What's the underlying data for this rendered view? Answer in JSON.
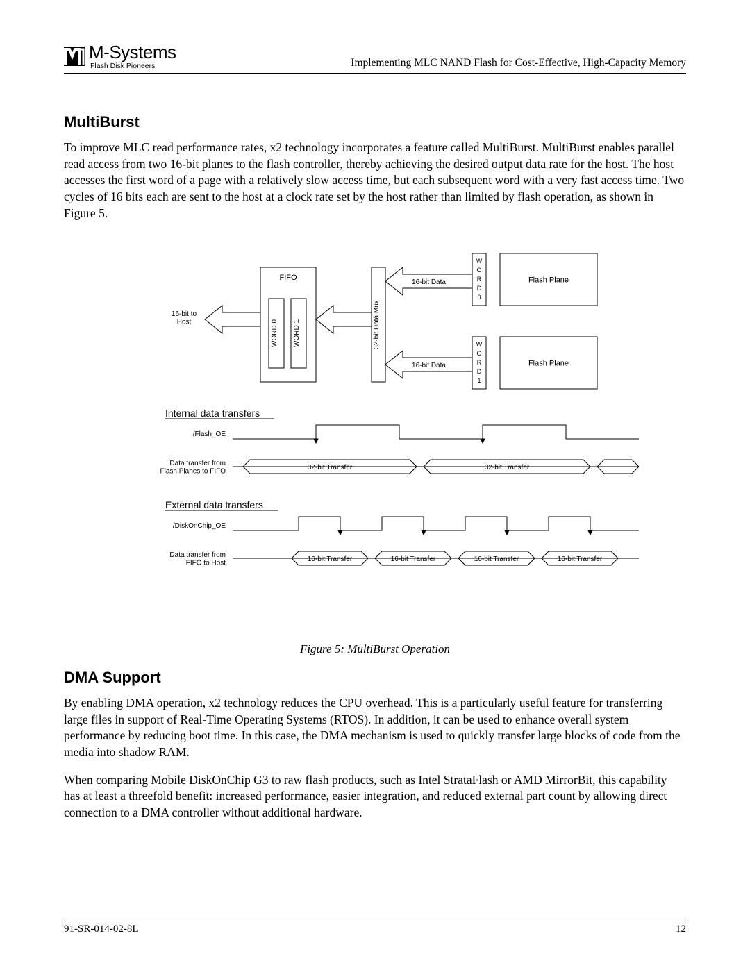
{
  "header": {
    "company": "M-Systems",
    "tagline": "Flash Disk Pioneers",
    "doc_title": "Implementing MLC NAND Flash for Cost-Effective, High-Capacity Memory"
  },
  "section1": {
    "heading": "MultiBurst",
    "para1": "To improve MLC read performance rates, x2 technology incorporates a feature called MultiBurst. MultiBurst enables parallel read access from two 16-bit planes to the flash controller, thereby achieving the desired output data rate for the host. The host accesses the first word of a page with a relatively slow access time, but each subsequent word with a very fast access time. Two cycles of 16 bits each are sent to the host at a clock rate set by the host rather than limited by flash operation, as shown in Figure 5."
  },
  "figure": {
    "caption": "Figure 5: MultiBurst Operation",
    "labels": {
      "fifo": "FIFO",
      "word0": "WORD 0",
      "word1": "WORD 1",
      "to_host": "16-bit to\nHost",
      "mux": "32-bit Data Mux",
      "data16": "16-bit Data",
      "w": "W",
      "o": "O",
      "r": "R",
      "d": "D",
      "zero": "0",
      "one": "1",
      "flash_plane": "Flash Plane",
      "internal": "Internal data transfers",
      "external": "External data transfers",
      "flash_oe": "/Flash_OE",
      "int_data_from": "Data transfer from\nFlash Planes to FIFO",
      "t32": "32-bit  Transfer",
      "doc_oe": "/DiskOnChip_OE",
      "ext_data_from": "Data transfer from\nFIFO to Host",
      "t16": "16-bit  Transfer"
    },
    "style": {
      "font_size_small": 11,
      "font_size_med": 13,
      "stroke": "#000000",
      "fill": "#ffffff"
    }
  },
  "section2": {
    "heading": "DMA Support",
    "para1": "By enabling DMA operation, x2 technology reduces the CPU overhead. This is a particularly useful feature for transferring large files in support of Real-Time Operating Systems (RTOS).  In addition, it can be used to enhance overall system performance by reducing boot time. In this case, the DMA mechanism is used to quickly transfer large blocks of code from the media into shadow RAM.",
    "para2": "When comparing Mobile DiskOnChip G3 to raw flash products, such as Intel StrataFlash or AMD MirrorBit, this capability has at least a threefold benefit: increased performance, easier integration, and reduced external part count by allowing direct connection to a DMA controller without additional hardware."
  },
  "footer": {
    "doc_id": "91-SR-014-02-8L",
    "page": "12"
  }
}
